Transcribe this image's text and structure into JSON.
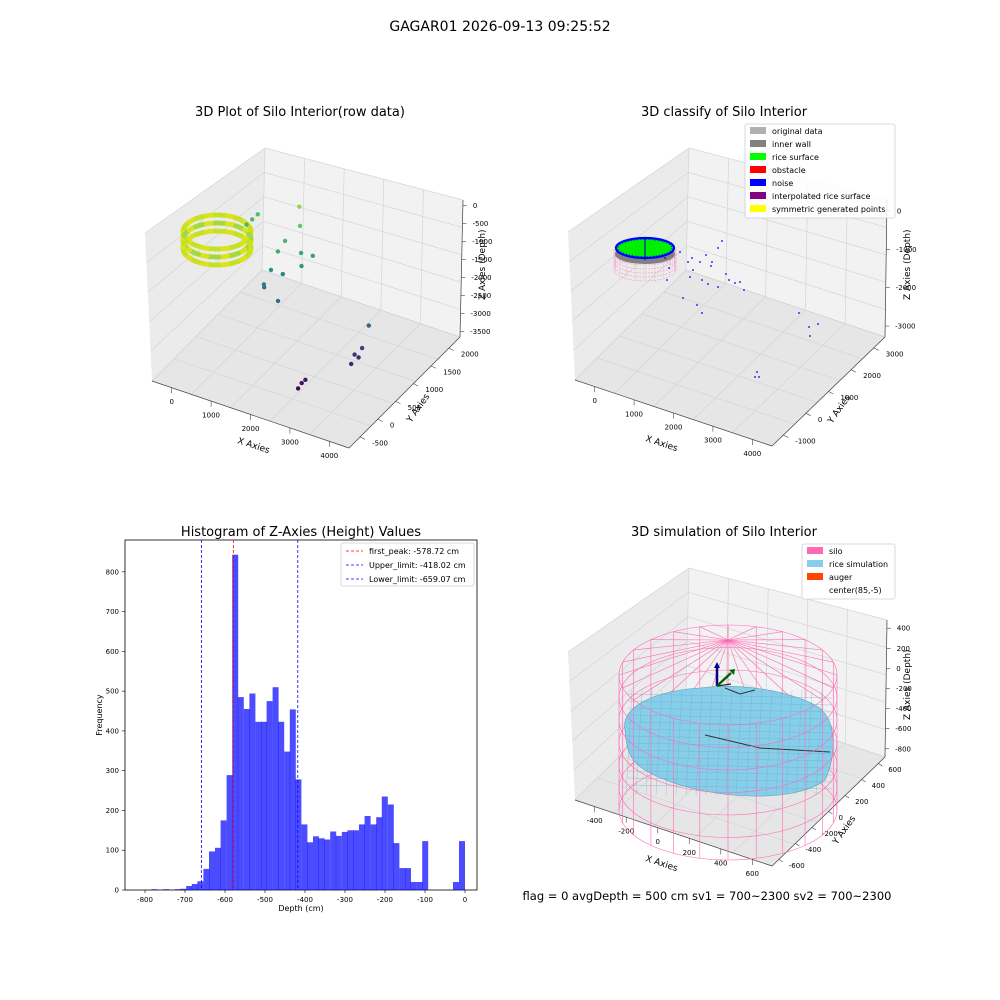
{
  "suptitle": "GAGAR01 2026-09-13 09:25:52",
  "status_line": "flag = 0     avgDepth = 500 cm  sv1 = 700~2300  sv2 = 700~2300",
  "chart_data": [
    {
      "type": "scatter3d",
      "title": "3D Plot of Silo Interior(row data)",
      "xlabel": "X Axies",
      "ylabel": "Y Axies",
      "zlabel": "Z Axies (Depth)",
      "x_ticks": [
        "0",
        "1000",
        "2000",
        "3000",
        "4000"
      ],
      "y_ticks": [
        "-500",
        "0",
        "500",
        "1000",
        "1500",
        "2000"
      ],
      "z_ticks": [
        "0",
        "-500",
        "-1000",
        "-1500",
        "-2000",
        "-2500",
        "-3000",
        "-3500"
      ],
      "xlim": [
        -600,
        4500
      ],
      "ylim": [
        -700,
        2200
      ],
      "zlim": [
        -3600,
        100
      ],
      "points": [
        {
          "x": 250,
          "y": 1200,
          "z": -1100
        },
        {
          "x": 300,
          "y": 1300,
          "z": -1050
        },
        {
          "x": 200,
          "y": 1100,
          "z": -1150
        },
        {
          "x": 1400,
          "y": 1300,
          "z": -500
        },
        {
          "x": 1500,
          "y": 1200,
          "z": -850
        },
        {
          "x": 1300,
          "y": 1000,
          "z": -1100
        },
        {
          "x": 1200,
          "y": 900,
          "z": -1300
        },
        {
          "x": 1600,
          "y": 1100,
          "z": -1400
        },
        {
          "x": 1100,
          "y": 800,
          "z": -1700
        },
        {
          "x": 1700,
          "y": 1000,
          "z": -1600
        },
        {
          "x": 1000,
          "y": 700,
          "z": -2000
        },
        {
          "x": 1250,
          "y": 950,
          "z": -1900
        },
        {
          "x": 1800,
          "y": 1200,
          "z": -1500
        },
        {
          "x": 900,
          "y": 800,
          "z": -2200
        },
        {
          "x": 1350,
          "y": 700,
          "z": -2300
        },
        {
          "x": 3500,
          "y": 900,
          "z": -2400
        },
        {
          "x": 3400,
          "y": 800,
          "z": -2900
        },
        {
          "x": 3300,
          "y": 700,
          "z": -3000
        },
        {
          "x": 3350,
          "y": 750,
          "z": -3100
        },
        {
          "x": 3250,
          "y": 650,
          "z": -3200
        },
        {
          "x": 2500,
          "y": 100,
          "z": -3400
        },
        {
          "x": 2550,
          "y": 150,
          "z": -3350
        },
        {
          "x": 2450,
          "y": 50,
          "z": -3500
        }
      ]
    },
    {
      "type": "scatter3d",
      "title": "3D classify of Silo Interior",
      "xlabel": "X Axies",
      "ylabel": "Y Axies",
      "zlabel": "Z Axies (Depth)",
      "x_ticks": [
        "0",
        "1000",
        "2000",
        "3000",
        "4000"
      ],
      "y_ticks": [
        "-1000",
        "0",
        "1000",
        "2000",
        "3000"
      ],
      "z_ticks": [
        "0",
        "-1000",
        "-2000",
        "-3000"
      ],
      "xlim": [
        -600,
        4500
      ],
      "ylim": [
        -1500,
        3200
      ],
      "zlim": [
        -3600,
        300
      ],
      "legend_location": "top-right",
      "legend": [
        {
          "label": "original data",
          "color": "#b0b0b0"
        },
        {
          "label": "inner wall",
          "color": "#808080"
        },
        {
          "label": "rice surface",
          "color": "#00ff00"
        },
        {
          "label": "obstacle",
          "color": "#ff0000"
        },
        {
          "label": "noise",
          "color": "#0000ff"
        },
        {
          "label": "interpolated rice surface",
          "color": "#800080"
        },
        {
          "label": "symmetric generated points",
          "color": "#ffff00"
        }
      ]
    },
    {
      "type": "bar",
      "title": "Histogram of Z-Axies (Height) Values",
      "xlabel": "Depth (cm)",
      "ylabel": "Frequency",
      "xlim": [
        -850,
        30
      ],
      "ylim": [
        0,
        880
      ],
      "x_ticks": [
        -800,
        -700,
        -600,
        -500,
        -400,
        -300,
        -200,
        -100,
        0
      ],
      "y_ticks": [
        0,
        100,
        200,
        300,
        400,
        500,
        600,
        700,
        800
      ],
      "bar_color": "#0000ff",
      "bin_width": 14.4,
      "bins": [
        {
          "x": -784,
          "count": 2
        },
        {
          "x": -755,
          "count": 2
        },
        {
          "x": -726,
          "count": 2
        },
        {
          "x": -712,
          "count": 3
        },
        {
          "x": -697,
          "count": 10
        },
        {
          "x": -683,
          "count": 15
        },
        {
          "x": -669,
          "count": 22
        },
        {
          "x": -654,
          "count": 53
        },
        {
          "x": -640,
          "count": 97
        },
        {
          "x": -625,
          "count": 106
        },
        {
          "x": -611,
          "count": 175
        },
        {
          "x": -596,
          "count": 289
        },
        {
          "x": -582,
          "count": 843
        },
        {
          "x": -568,
          "count": 485
        },
        {
          "x": -553,
          "count": 455
        },
        {
          "x": -539,
          "count": 494
        },
        {
          "x": -524,
          "count": 423
        },
        {
          "x": -510,
          "count": 423
        },
        {
          "x": -496,
          "count": 475
        },
        {
          "x": -481,
          "count": 510
        },
        {
          "x": -467,
          "count": 423
        },
        {
          "x": -452,
          "count": 348
        },
        {
          "x": -438,
          "count": 454
        },
        {
          "x": -424,
          "count": 278
        },
        {
          "x": -409,
          "count": 165
        },
        {
          "x": -395,
          "count": 120
        },
        {
          "x": -380,
          "count": 135
        },
        {
          "x": -366,
          "count": 130
        },
        {
          "x": -352,
          "count": 127
        },
        {
          "x": -337,
          "count": 147
        },
        {
          "x": -323,
          "count": 136
        },
        {
          "x": -308,
          "count": 146
        },
        {
          "x": -294,
          "count": 150
        },
        {
          "x": -280,
          "count": 150
        },
        {
          "x": -265,
          "count": 165
        },
        {
          "x": -251,
          "count": 186
        },
        {
          "x": -236,
          "count": 165
        },
        {
          "x": -222,
          "count": 183
        },
        {
          "x": -208,
          "count": 235
        },
        {
          "x": -193,
          "count": 215
        },
        {
          "x": -179,
          "count": 118
        },
        {
          "x": -164,
          "count": 55
        },
        {
          "x": -150,
          "count": 55
        },
        {
          "x": -136,
          "count": 20
        },
        {
          "x": -121,
          "count": 20
        },
        {
          "x": -107,
          "count": 123
        }
      ],
      "vlines": [
        {
          "value": -578.72,
          "color": "#ff0000"
        },
        {
          "value": -418.02,
          "color": "#0000ff"
        },
        {
          "value": -659.07,
          "color": "#0000ff"
        }
      ],
      "legend_location": "top-right",
      "legend": [
        {
          "label": "first_peak: -578.72 cm",
          "color": "#ff0000"
        },
        {
          "label": "Upper_limit: -418.02 cm",
          "color": "#0000ff"
        },
        {
          "label": "Lower_limit: -659.07 cm",
          "color": "#0000ff"
        }
      ]
    },
    {
      "type": "surface3d",
      "title": "3D simulation of Silo Interior",
      "xlabel": "X Axies",
      "ylabel": "Y Axies",
      "zlabel": "Z Axies (Depth)",
      "x_ticks": [
        "-400",
        "-200",
        "0",
        "200",
        "400",
        "600"
      ],
      "y_ticks": [
        "-600",
        "-400",
        "-200",
        "0",
        "200",
        "400",
        "600"
      ],
      "z_ticks": [
        "400",
        "200",
        "0",
        "-200",
        "-400",
        "-600",
        "-800"
      ],
      "legend_location": "top-right",
      "legend": [
        {
          "label": "silo",
          "color": "#ff69b4"
        },
        {
          "label": "rice simulation",
          "color": "#87ceeb"
        },
        {
          "label": "auger",
          "color": "#ff4500"
        },
        {
          "label": "center(85,-5)",
          "color": "none"
        }
      ]
    }
  ]
}
